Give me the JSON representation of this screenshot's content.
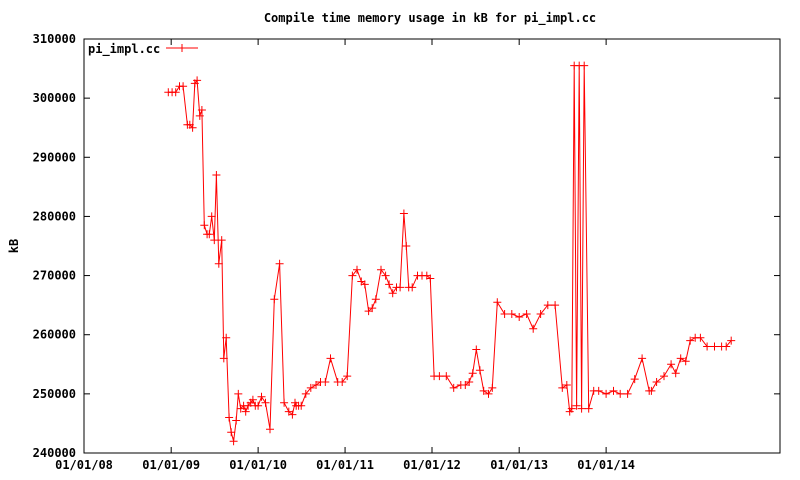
{
  "chart_data": {
    "type": "line",
    "title": "Compile time memory usage in kB for pi_impl.cc",
    "xlabel": "",
    "ylabel": "kB",
    "x_tick_labels": [
      "01/01/08",
      "01/01/09",
      "01/01/10",
      "01/01/11",
      "01/01/12",
      "01/01/13",
      "01/01/14"
    ],
    "x_ticks": [
      "2008-01-01",
      "2009-01-01",
      "2010-01-01",
      "2011-01-01",
      "2012-01-01",
      "2013-01-01",
      "2014-01-01"
    ],
    "xlim": [
      "2008-01-01",
      "2016-01-01"
    ],
    "y_tick_labels": [
      "240000",
      "250000",
      "260000",
      "270000",
      "280000",
      "290000",
      "300000",
      "310000"
    ],
    "ylim": [
      240000,
      310000
    ],
    "grid": false,
    "legend": {
      "position": "top-left",
      "entries": [
        "pi_impl.cc"
      ]
    },
    "series": [
      {
        "name": "pi_impl.cc",
        "color": "#ff0000",
        "marker": "plus",
        "x": [
          "2008-12-20",
          "2009-01-05",
          "2009-01-20",
          "2009-02-05",
          "2009-02-20",
          "2009-03-10",
          "2009-03-20",
          "2009-04-01",
          "2009-04-10",
          "2009-04-20",
          "2009-05-01",
          "2009-05-10",
          "2009-05-20",
          "2009-06-01",
          "2009-06-10",
          "2009-06-20",
          "2009-07-01",
          "2009-07-10",
          "2009-07-20",
          "2009-08-01",
          "2009-08-10",
          "2009-08-20",
          "2009-09-01",
          "2009-09-10",
          "2009-09-20",
          "2009-10-01",
          "2009-10-10",
          "2009-10-20",
          "2009-11-01",
          "2009-11-10",
          "2009-11-20",
          "2009-12-01",
          "2009-12-10",
          "2009-12-20",
          "2010-01-01",
          "2010-01-15",
          "2010-02-01",
          "2010-02-20",
          "2010-03-10",
          "2010-04-01",
          "2010-04-20",
          "2010-05-10",
          "2010-05-25",
          "2010-06-05",
          "2010-06-10",
          "2010-06-20",
          "2010-07-01",
          "2010-07-20",
          "2010-08-10",
          "2010-09-01",
          "2010-09-20",
          "2010-10-10",
          "2010-11-01",
          "2010-12-01",
          "2010-12-20",
          "2011-01-10",
          "2011-02-01",
          "2011-02-20",
          "2011-03-10",
          "2011-03-25",
          "2011-04-10",
          "2011-04-25",
          "2011-05-10",
          "2011-06-01",
          "2011-06-20",
          "2011-07-05",
          "2011-07-20",
          "2011-08-05",
          "2011-08-20",
          "2011-09-05",
          "2011-09-15",
          "2011-09-25",
          "2011-10-10",
          "2011-11-01",
          "2011-11-20",
          "2011-12-10",
          "2011-12-25",
          "2012-01-10",
          "2012-02-01",
          "2012-03-01",
          "2012-04-01",
          "2012-05-01",
          "2012-05-20",
          "2012-06-05",
          "2012-06-20",
          "2012-07-05",
          "2012-07-20",
          "2012-08-05",
          "2012-08-25",
          "2012-09-10",
          "2012-10-01",
          "2012-11-01",
          "2012-12-01",
          "2013-01-01",
          "2013-02-01",
          "2013-03-01",
          "2013-04-01",
          "2013-05-01",
          "2013-06-01",
          "2013-07-01",
          "2013-07-20",
          "2013-08-01",
          "2013-08-10",
          "2013-08-20",
          "2013-08-30",
          "2013-09-10",
          "2013-09-20",
          "2013-10-01",
          "2013-10-20",
          "2013-11-10",
          "2013-12-01",
          "2014-01-01",
          "2014-02-01",
          "2014-03-01",
          "2014-04-01",
          "2014-05-01",
          "2014-06-01",
          "2014-07-01",
          "2014-07-10",
          "2014-08-01",
          "2014-09-01",
          "2014-10-01",
          "2014-10-20",
          "2014-11-10",
          "2014-12-01",
          "2014-12-20",
          "2015-01-10",
          "2015-02-01",
          "2015-03-01",
          "2015-04-01",
          "2015-05-01",
          "2015-05-20",
          "2015-06-10"
        ],
        "values": [
          301000,
          301000,
          301000,
          302000,
          302000,
          295500,
          295500,
          295000,
          302500,
          303000,
          297000,
          298000,
          278500,
          277000,
          277000,
          280000,
          276000,
          287000,
          272000,
          276000,
          256000,
          259500,
          246000,
          243500,
          242000,
          245500,
          250000,
          247500,
          248000,
          247000,
          248000,
          248500,
          249000,
          248000,
          248000,
          249500,
          248500,
          244000,
          266000,
          272000,
          248500,
          247000,
          246500,
          248500,
          248000,
          248000,
          248000,
          250000,
          251000,
          251500,
          252000,
          252000,
          256000,
          252000,
          252000,
          253000,
          270000,
          271000,
          269000,
          268500,
          264000,
          264500,
          266000,
          271000,
          270000,
          268500,
          267000,
          268000,
          268000,
          280500,
          275000,
          268000,
          268000,
          270000,
          270000,
          270000,
          269500,
          253000,
          253000,
          253000,
          251000,
          251500,
          251500,
          252000,
          253500,
          257500,
          254000,
          250500,
          250000,
          251000,
          265500,
          263500,
          263500,
          263000,
          263500,
          261000,
          263500,
          265000,
          265000,
          251000,
          251500,
          247000,
          247500,
          305500,
          248000,
          305500,
          247500,
          305500,
          247500,
          250500,
          250500,
          250000,
          250500,
          250000,
          250000,
          252500,
          256000,
          250500,
          250500,
          252000,
          253000,
          255000,
          253500,
          256000,
          255500,
          259000,
          259500,
          259500,
          258000,
          258000,
          258000,
          258000,
          259000
        ]
      }
    ]
  }
}
